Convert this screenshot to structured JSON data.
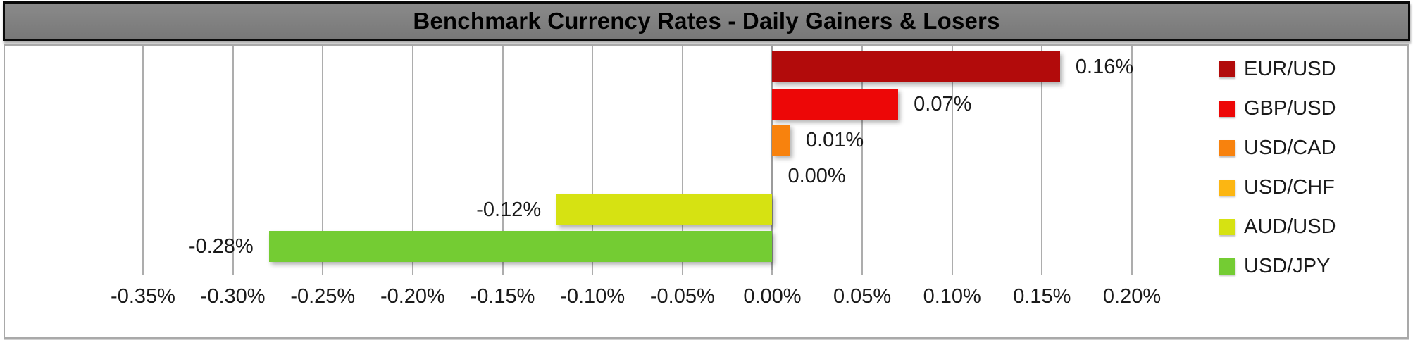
{
  "chart_data": {
    "type": "bar",
    "orientation": "horizontal",
    "title": "Benchmark Currency Rates - Daily Gainers & Losers",
    "categories": [
      "EUR/USD",
      "GBP/USD",
      "USD/CAD",
      "USD/CHF",
      "AUD/USD",
      "USD/JPY"
    ],
    "values": [
      0.16,
      0.07,
      0.01,
      0.0,
      -0.12,
      -0.28
    ],
    "value_labels": [
      "0.16%",
      "0.07%",
      "0.01%",
      "0.00%",
      "-0.12%",
      "-0.28%"
    ],
    "bar_colors": [
      "#B20B0B",
      "#ED0707",
      "#F8820D",
      "#FCB612",
      "#D6E212",
      "#74CC33"
    ],
    "xlim": [
      -0.35,
      0.2
    ],
    "tick_step": 0.05,
    "tick_labels": [
      "-0.35%",
      "-0.30%",
      "-0.25%",
      "-0.20%",
      "-0.15%",
      "-0.10%",
      "-0.05%",
      "0.00%",
      "0.05%",
      "0.10%",
      "0.15%",
      "0.20%"
    ],
    "grid": true,
    "legend_position": "right"
  },
  "colors": {
    "title_bar_bg": "#7E7E7E",
    "title_text": "#000000",
    "frame_border": "#A9A9A9",
    "gridline": "#ADADAD",
    "zero_line": "#9B9B9B",
    "axis_text": "#1A1A1A",
    "label_text": "#1A1A1A"
  }
}
